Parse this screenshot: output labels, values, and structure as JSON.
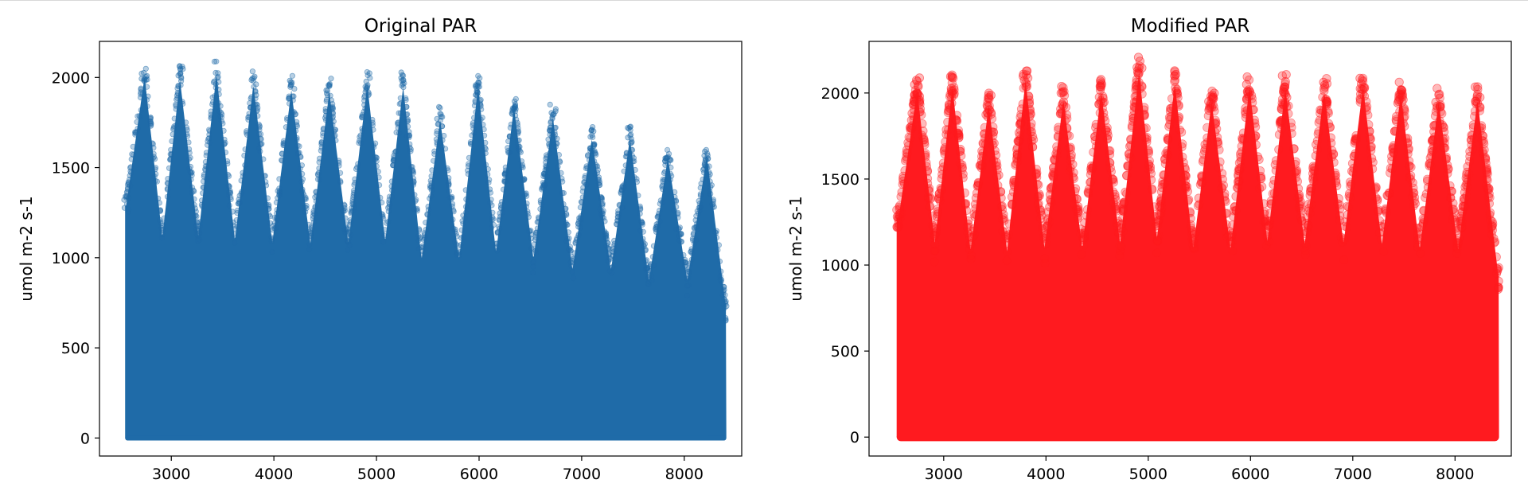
{
  "chart_data": [
    {
      "type": "scatter",
      "title": "Original PAR",
      "xlabel": "",
      "ylabel": "umol m-2 s-1",
      "xlim": [
        2300,
        8560
      ],
      "ylim": [
        -100,
        2200
      ],
      "xticks": [
        3000,
        4000,
        5000,
        6000,
        7000,
        8000
      ],
      "yticks": [
        0,
        500,
        1000,
        1500,
        2000
      ],
      "color": "#1f6ba8",
      "grid": false,
      "x_range": [
        2550,
        8410
      ],
      "daily_envelope": [
        {
          "x": 2560,
          "max": 1340
        },
        {
          "x": 2740,
          "max": 2090
        },
        {
          "x": 3085,
          "max": 2070
        },
        {
          "x": 3440,
          "max": 2100
        },
        {
          "x": 3800,
          "max": 2040
        },
        {
          "x": 4170,
          "max": 2010
        },
        {
          "x": 4540,
          "max": 2000
        },
        {
          "x": 4910,
          "max": 2040
        },
        {
          "x": 5260,
          "max": 2030
        },
        {
          "x": 5620,
          "max": 1840
        },
        {
          "x": 5990,
          "max": 2030
        },
        {
          "x": 6340,
          "max": 1910
        },
        {
          "x": 6720,
          "max": 1850
        },
        {
          "x": 7100,
          "max": 1730
        },
        {
          "x": 7470,
          "max": 1730
        },
        {
          "x": 7840,
          "max": 1620
        },
        {
          "x": 8220,
          "max": 1630
        },
        {
          "x": 8400,
          "max": 780
        }
      ]
    },
    {
      "type": "scatter",
      "title": "Modified PAR",
      "xlabel": "",
      "ylabel": "umol m-2 s-1",
      "xlim": [
        2270,
        8550
      ],
      "ylim": [
        -110,
        2300
      ],
      "xticks": [
        3000,
        4000,
        5000,
        6000,
        7000,
        8000
      ],
      "yticks": [
        0,
        500,
        1000,
        1500,
        2000
      ],
      "color": "#ff1a1f",
      "grid": false,
      "x_range": [
        2540,
        8430
      ],
      "daily_envelope": [
        {
          "x": 2560,
          "max": 1330
        },
        {
          "x": 2740,
          "max": 2100
        },
        {
          "x": 3085,
          "max": 2120
        },
        {
          "x": 3440,
          "max": 2010
        },
        {
          "x": 3800,
          "max": 2160
        },
        {
          "x": 4170,
          "max": 2040
        },
        {
          "x": 4540,
          "max": 2090
        },
        {
          "x": 4910,
          "max": 2210
        },
        {
          "x": 5260,
          "max": 2140
        },
        {
          "x": 5620,
          "max": 2030
        },
        {
          "x": 5990,
          "max": 2120
        },
        {
          "x": 6340,
          "max": 2110
        },
        {
          "x": 6720,
          "max": 2090
        },
        {
          "x": 7100,
          "max": 2120
        },
        {
          "x": 7470,
          "max": 2080
        },
        {
          "x": 7840,
          "max": 2030
        },
        {
          "x": 8220,
          "max": 2040
        },
        {
          "x": 8420,
          "max": 990
        }
      ]
    }
  ]
}
